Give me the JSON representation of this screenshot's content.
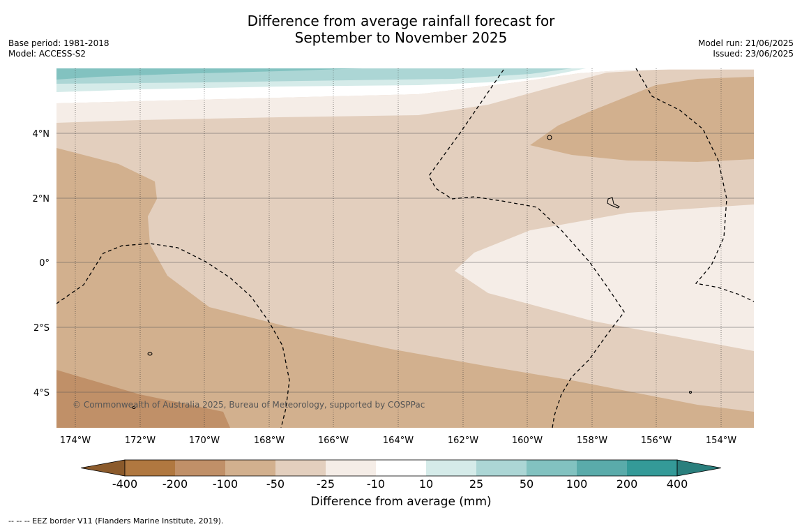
{
  "title_line1": "Difference from average rainfall forecast for",
  "title_line2": "September to November 2025",
  "base_period": "Base period: 1981-2018",
  "model": "Model: ACCESS-S2",
  "model_run": "Model run: 21/06/2025",
  "issued": "Issued: 23/06/2025",
  "copyright": "© Commonwealth of Australia 2025, Bureau of Meteorology, supported by COSPPac",
  "lon_labels": [
    "174°W",
    "172°W",
    "170°W",
    "168°W",
    "166°W",
    "164°W",
    "162°W",
    "160°W",
    "158°W",
    "156°W",
    "154°W"
  ],
  "lat_labels": [
    "4°N",
    "2°N",
    "0°",
    "2°S",
    "4°S"
  ],
  "colorbar": {
    "title": "Difference from average (mm)",
    "ticks": [
      "-400",
      "-200",
      "-100",
      "-50",
      "-25",
      "-10",
      "10",
      "25",
      "50",
      "100",
      "200",
      "400"
    ],
    "colors": [
      "#8b5a2b",
      "#b07840",
      "#c09068",
      "#d2b08e",
      "#e3cfbe",
      "#f5ede7",
      "#ffffff",
      "#d5ebe9",
      "#acd6d5",
      "#82c2c0",
      "#5aabaa",
      "#349a98",
      "#2a7f7d"
    ]
  },
  "footnote": "--  --  -- EEZ border V11 (Flanders Marine Institute, 2019)."
}
